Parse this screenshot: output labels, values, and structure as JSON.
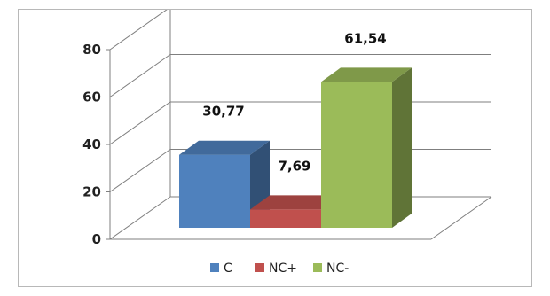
{
  "chart_data": {
    "type": "bar",
    "style": "3d-clustered-column",
    "categories": [
      "C",
      "NC+",
      "NC-"
    ],
    "values": [
      30.77,
      7.69,
      61.54
    ],
    "data_labels": [
      "30,77",
      "7,69",
      "61,54"
    ],
    "colors": [
      "#4F81BD",
      "#C0504D",
      "#9BBB59"
    ],
    "y_ticks": [
      0,
      20,
      40,
      60,
      80
    ],
    "ylim": [
      0,
      80
    ],
    "grid": true,
    "legend_position": "bottom",
    "legend": [
      "C",
      "NC+",
      "NC-"
    ]
  }
}
